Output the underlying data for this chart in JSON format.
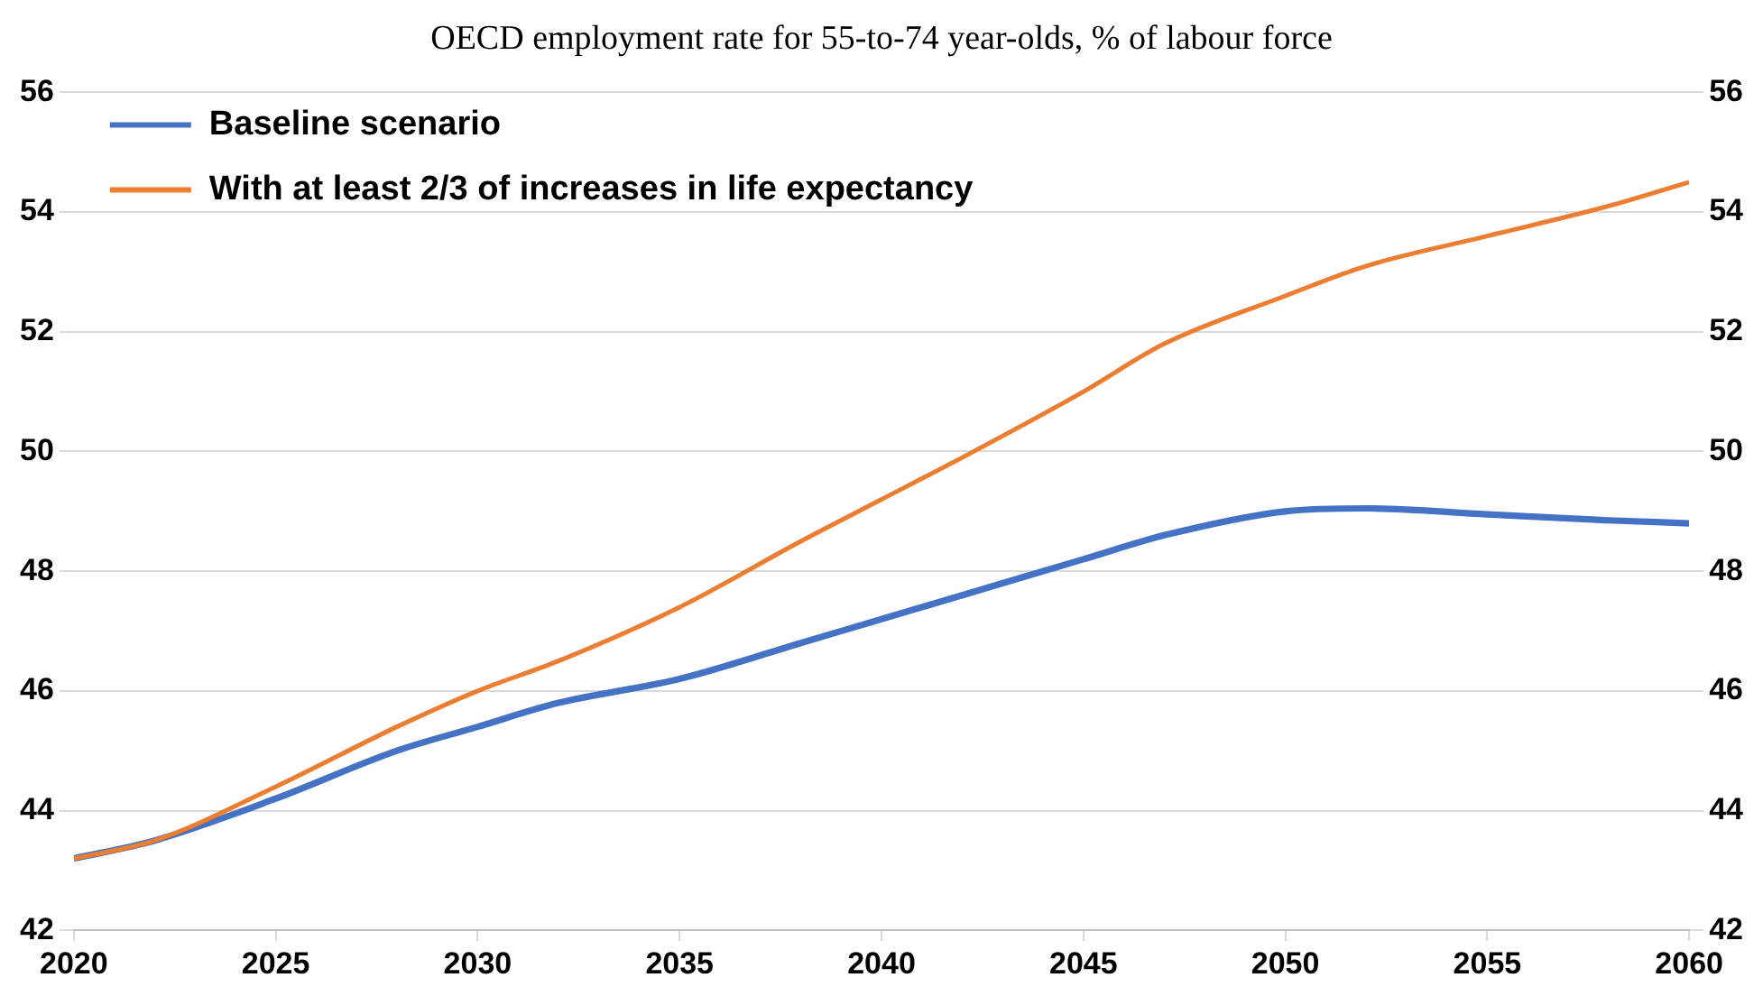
{
  "chart_data": {
    "type": "line",
    "title": "OECD employment rate for 55-to-74 year-olds, % of labour force",
    "x": [
      2020,
      2022,
      2025,
      2028,
      2030,
      2032,
      2035,
      2038,
      2040,
      2042,
      2045,
      2047,
      2050,
      2052,
      2055,
      2058,
      2060
    ],
    "series": [
      {
        "name": "Baseline scenario",
        "color": "#4472c4",
        "values": [
          43.2,
          43.5,
          44.2,
          45.0,
          45.4,
          45.8,
          46.2,
          46.8,
          47.2,
          47.6,
          48.2,
          48.6,
          49.0,
          49.05,
          48.95,
          48.85,
          48.8
        ]
      },
      {
        "name": "With at least 2/3 of increases in life expectancy",
        "color": "#ed7d31",
        "values": [
          43.2,
          43.5,
          44.4,
          45.4,
          46.0,
          46.5,
          47.4,
          48.5,
          49.2,
          49.9,
          51.0,
          51.8,
          52.6,
          53.1,
          53.6,
          54.1,
          54.5
        ]
      }
    ],
    "xlim": [
      2020,
      2060
    ],
    "xticks": [
      2020,
      2025,
      2030,
      2035,
      2040,
      2045,
      2050,
      2055,
      2060
    ],
    "ylim": [
      42,
      56
    ],
    "yticks": [
      42,
      44,
      46,
      48,
      50,
      52,
      54,
      56
    ],
    "y2lim": [
      42,
      56
    ],
    "y2ticks": [
      42,
      44,
      46,
      48,
      50,
      52,
      54,
      56
    ],
    "grid": "y",
    "legend": "top left",
    "marker": "none",
    "line_style": "solid"
  }
}
